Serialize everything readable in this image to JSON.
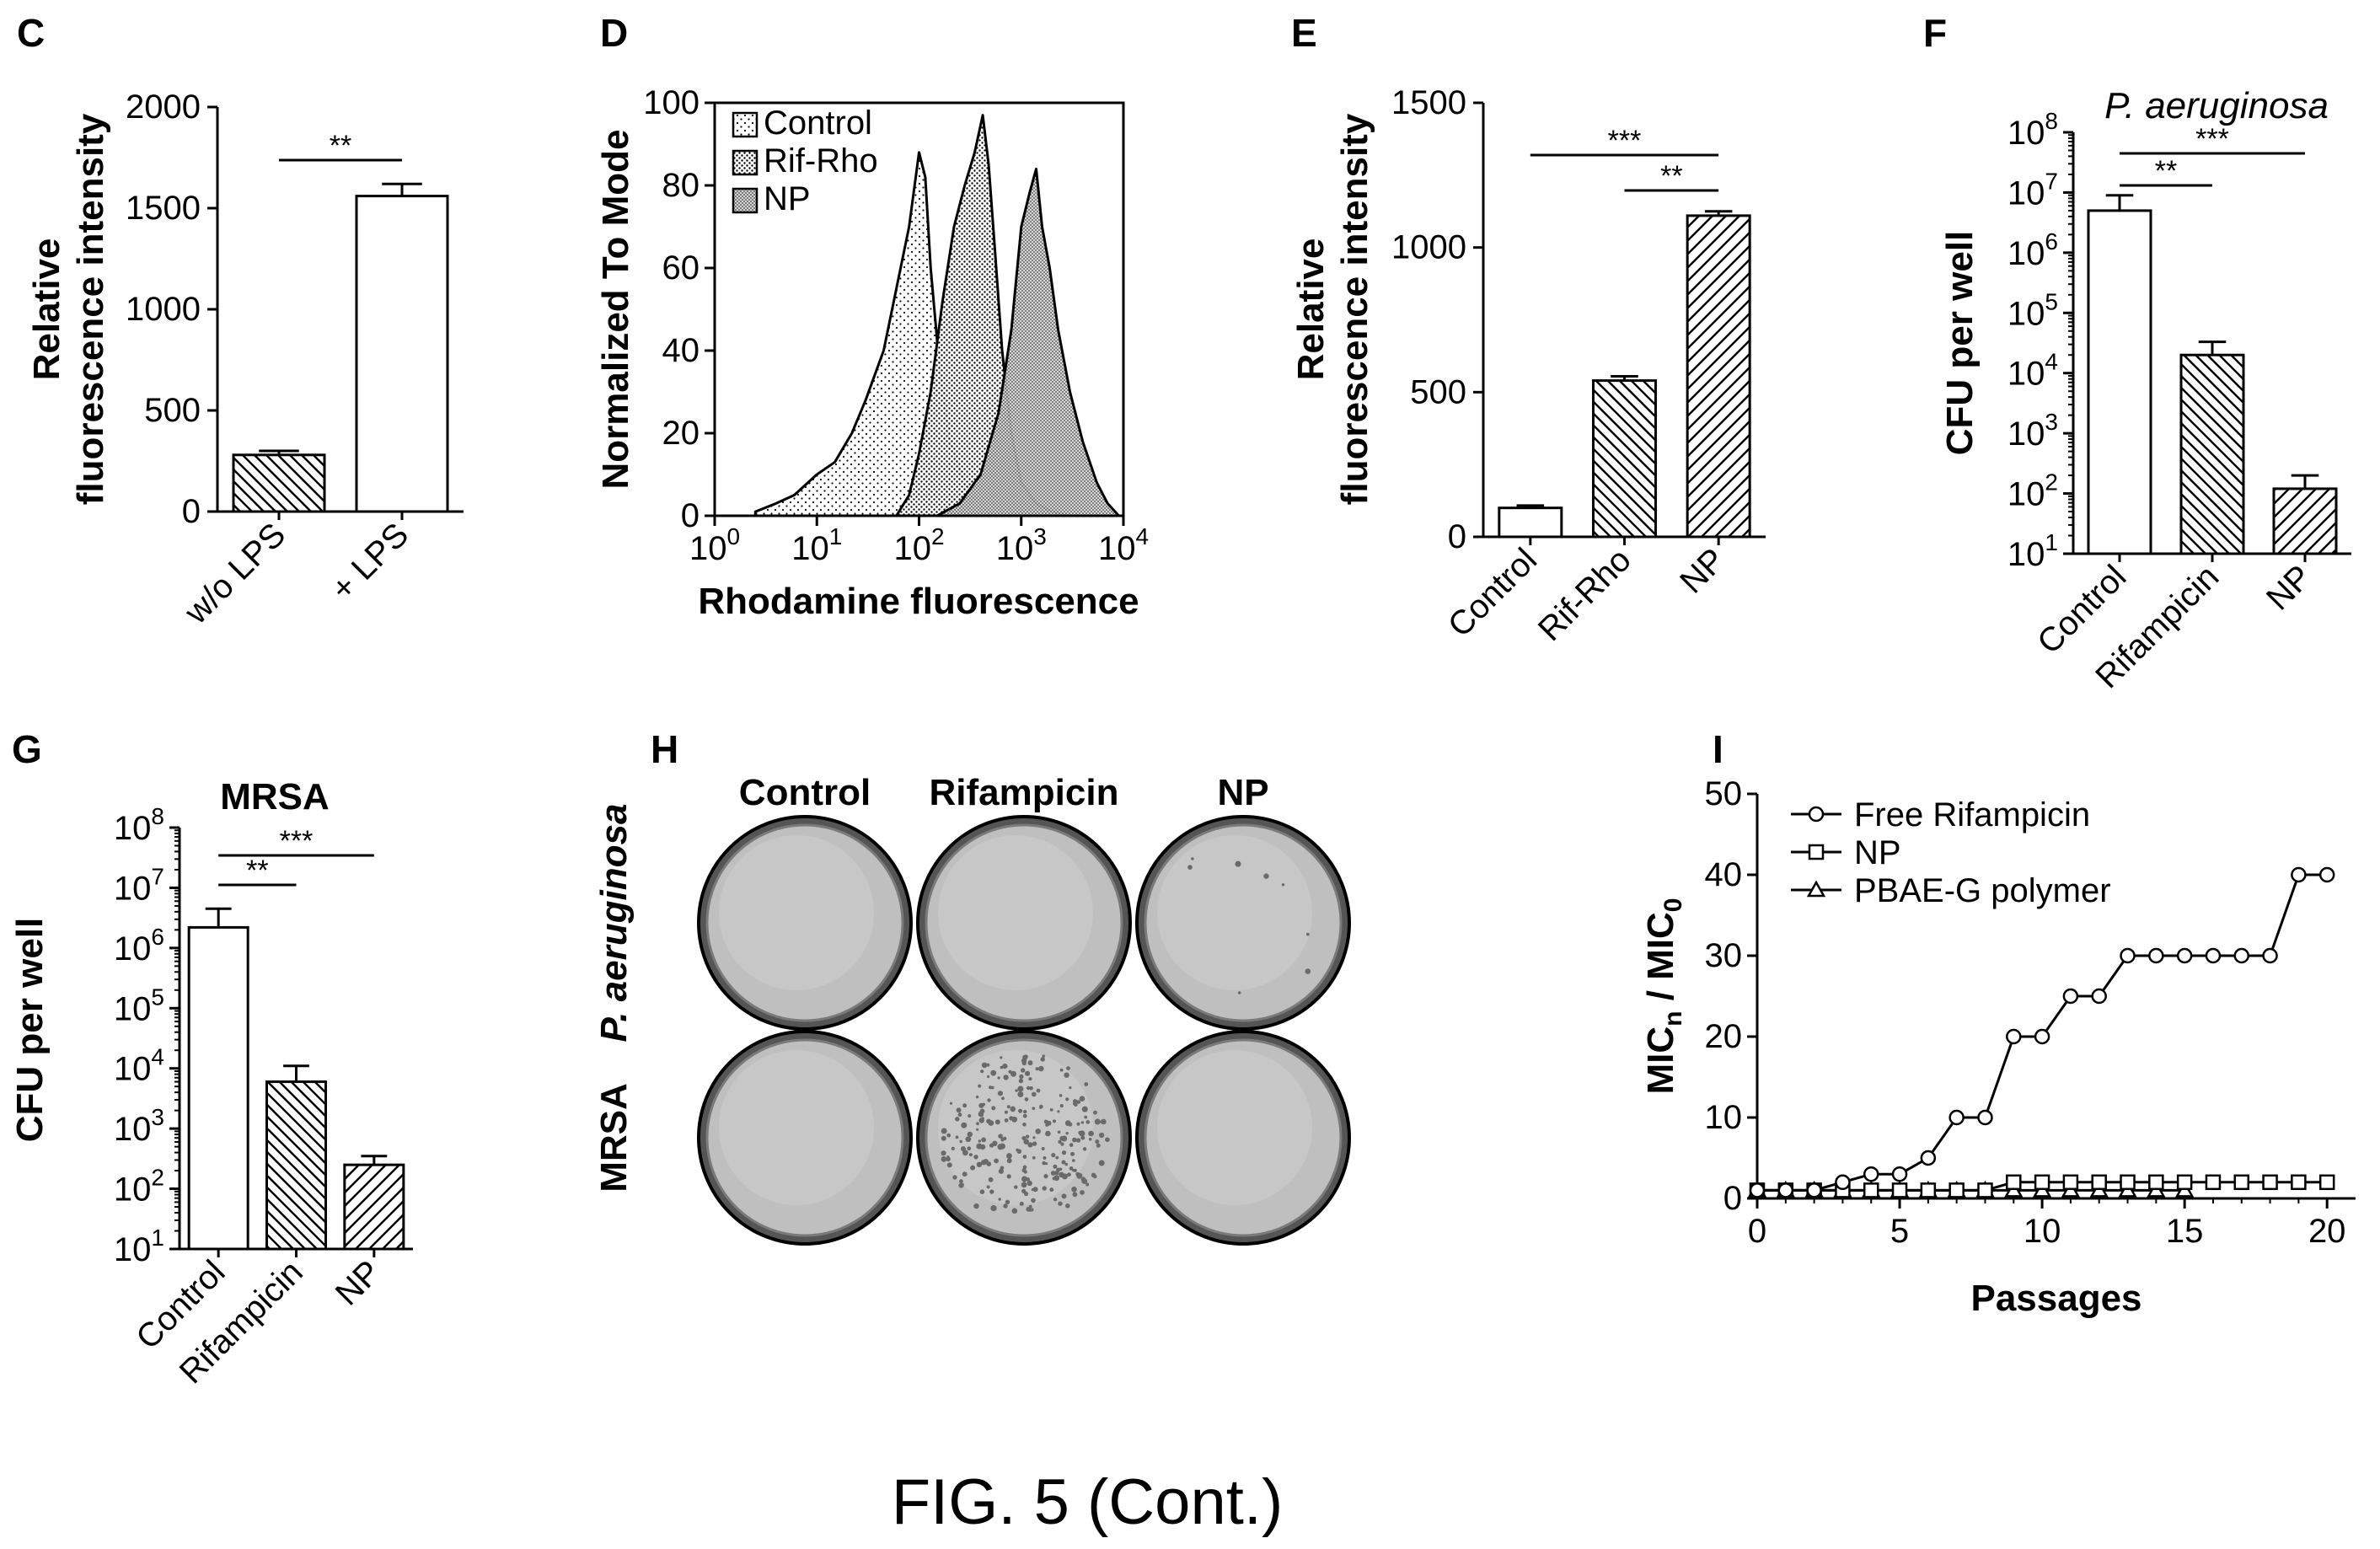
{
  "figure_caption": "FIG. 5 (Cont.)",
  "hatch_colors": {
    "stroke": "#000000",
    "fill": "#ffffff",
    "plate": "#c9c9c9",
    "plate_dark": "#9a9a9a"
  },
  "chart_data": [
    {
      "panel": "C",
      "type": "bar",
      "ylabel_line1": "Relative",
      "ylabel_line2": "fluorescence intensity",
      "categories": [
        "w/o LPS",
        "+ LPS"
      ],
      "values": [
        280,
        1560
      ],
      "errors": [
        20,
        60
      ],
      "patterns": [
        "hatch-back",
        "none"
      ],
      "ylim": [
        0,
        2000
      ],
      "yticks": [
        "0",
        "500",
        "1000",
        "1500",
        "2000"
      ],
      "significance": [
        {
          "label": "**",
          "from": 0,
          "to": 1
        }
      ]
    },
    {
      "panel": "D",
      "type": "line",
      "xlabel": "Rhodamine fluorescence",
      "ylabel": "Normalized To Mode",
      "xscale": "log",
      "xlim": [
        1,
        10000
      ],
      "ylim": [
        0,
        100
      ],
      "yticks": [
        "0",
        "20",
        "40",
        "60",
        "80",
        "100"
      ],
      "xticks": [
        {
          "base": "10",
          "exp": "0"
        },
        {
          "base": "10",
          "exp": "1"
        },
        {
          "base": "10",
          "exp": "2"
        },
        {
          "base": "10",
          "exp": "3"
        },
        {
          "base": "10",
          "exp": "4"
        }
      ],
      "legend": [
        "Control",
        "Rif-Rho",
        "NP"
      ],
      "series": [
        {
          "name": "Control",
          "x": [
            2.5,
            4,
            6,
            10,
            15,
            22,
            30,
            45,
            60,
            80,
            100,
            115,
            130,
            160,
            200,
            280,
            400,
            600
          ],
          "y": [
            1,
            3,
            5,
            10,
            13,
            20,
            28,
            40,
            55,
            70,
            88,
            82,
            60,
            35,
            18,
            8,
            2,
            0
          ]
        },
        {
          "name": "Rif-Rho",
          "x": [
            60,
            80,
            100,
            130,
            170,
            220,
            280,
            350,
            420,
            480,
            550,
            650,
            800,
            1000,
            1400,
            2000,
            3000
          ],
          "y": [
            0,
            5,
            15,
            30,
            52,
            70,
            80,
            88,
            97,
            85,
            65,
            40,
            20,
            8,
            3,
            1,
            0
          ]
        },
        {
          "name": "NP",
          "x": [
            150,
            250,
            400,
            600,
            800,
            1000,
            1200,
            1400,
            1600,
            1900,
            2300,
            3000,
            4000,
            5500,
            7000,
            9000
          ],
          "y": [
            0,
            3,
            10,
            25,
            45,
            70,
            78,
            84,
            70,
            60,
            45,
            30,
            18,
            8,
            3,
            0
          ]
        }
      ]
    },
    {
      "panel": "E",
      "type": "bar",
      "ylabel_line1": "Relative",
      "ylabel_line2": "fluorescence intensity",
      "categories": [
        "Control",
        "Rif-Rho",
        "NP"
      ],
      "values": [
        100,
        540,
        1110
      ],
      "errors": [
        8,
        15,
        15
      ],
      "patterns": [
        "none",
        "hatch-back",
        "hatch-fwd"
      ],
      "ylim": [
        0,
        1500
      ],
      "yticks": [
        "0",
        "500",
        "1000",
        "1500"
      ],
      "significance": [
        {
          "label": "***",
          "from": 0,
          "to": 2
        },
        {
          "label": "**",
          "from": 1,
          "to": 2
        }
      ]
    },
    {
      "panel": "F",
      "type": "bar",
      "title": "P. aeruginosa",
      "ylabel": "CFU per well",
      "yscale": "log",
      "categories": [
        "Control",
        "Rifampicin",
        "NP"
      ],
      "values": [
        5000000,
        20000,
        120
      ],
      "errors_upper": [
        9000000,
        33000,
        200
      ],
      "patterns": [
        "none",
        "hatch-back",
        "hatch-fwd"
      ],
      "ylim": [
        10,
        100000000
      ],
      "ytick_exps": [
        "1",
        "2",
        "3",
        "4",
        "5",
        "6",
        "7",
        "8"
      ],
      "significance": [
        {
          "label": "**",
          "from": 0,
          "to": 1
        },
        {
          "label": "***",
          "from": 0,
          "to": 2
        }
      ]
    },
    {
      "panel": "G",
      "type": "bar",
      "title": "MRSA",
      "ylabel": "CFU per well",
      "yscale": "log",
      "categories": [
        "Control",
        "Rifampicin",
        "NP"
      ],
      "values": [
        2200000,
        6000,
        250
      ],
      "errors_upper": [
        4500000,
        11000,
        350
      ],
      "patterns": [
        "none",
        "hatch-back",
        "hatch-fwd"
      ],
      "ylim": [
        10,
        100000000
      ],
      "ytick_exps": [
        "1",
        "2",
        "3",
        "4",
        "5",
        "6",
        "7",
        "8"
      ],
      "significance": [
        {
          "label": "**",
          "from": 0,
          "to": 1
        },
        {
          "label": "***",
          "from": 0,
          "to": 2
        }
      ]
    },
    {
      "panel": "I",
      "type": "line",
      "xlabel": "Passages",
      "ylabel_main": "MIC",
      "ylabel_sub_n": "n",
      "ylabel_sep": " / MIC",
      "ylabel_sub_0": "0",
      "xlim": [
        0,
        21
      ],
      "ylim": [
        0,
        50
      ],
      "xticks": [
        "0",
        "5",
        "10",
        "15",
        "20"
      ],
      "yticks": [
        "0",
        "10",
        "20",
        "30",
        "40",
        "50"
      ],
      "series": [
        {
          "name": "Free Rifampicin",
          "marker": "circle",
          "x": [
            0,
            1,
            2,
            3,
            4,
            5,
            6,
            7,
            8,
            9,
            10,
            11,
            12,
            13,
            14,
            15,
            16,
            17,
            18,
            19,
            20
          ],
          "y": [
            1,
            1,
            1,
            2,
            3,
            3,
            5,
            10,
            10,
            20,
            20,
            25,
            25,
            30,
            30,
            30,
            30,
            30,
            30,
            40,
            40
          ]
        },
        {
          "name": "NP",
          "marker": "square",
          "x": [
            0,
            1,
            2,
            3,
            4,
            5,
            6,
            7,
            8,
            9,
            10,
            11,
            12,
            13,
            14,
            15,
            16,
            17,
            18,
            19,
            20
          ],
          "y": [
            1,
            1,
            1,
            1,
            1,
            1,
            1,
            1,
            1,
            2,
            2,
            2,
            2,
            2,
            2,
            2,
            2,
            2,
            2,
            2,
            2
          ]
        },
        {
          "name": "PBAE-G polymer",
          "marker": "triangle",
          "x": [
            0,
            1,
            2,
            3,
            4,
            5,
            6,
            7,
            8,
            9,
            10,
            11,
            12,
            13,
            14,
            15
          ],
          "y": [
            1,
            1,
            1,
            1,
            1,
            1,
            1,
            1,
            1,
            1,
            1,
            1,
            1,
            1,
            1,
            1
          ]
        }
      ]
    }
  ],
  "panel_h": {
    "label": "H",
    "columns": [
      "Control",
      "Rifampicin",
      "NP"
    ],
    "rows": [
      "P. aeruginosa",
      "MRSA"
    ],
    "colonies": [
      [
        0,
        0,
        8
      ],
      [
        0,
        260,
        0
      ]
    ]
  }
}
